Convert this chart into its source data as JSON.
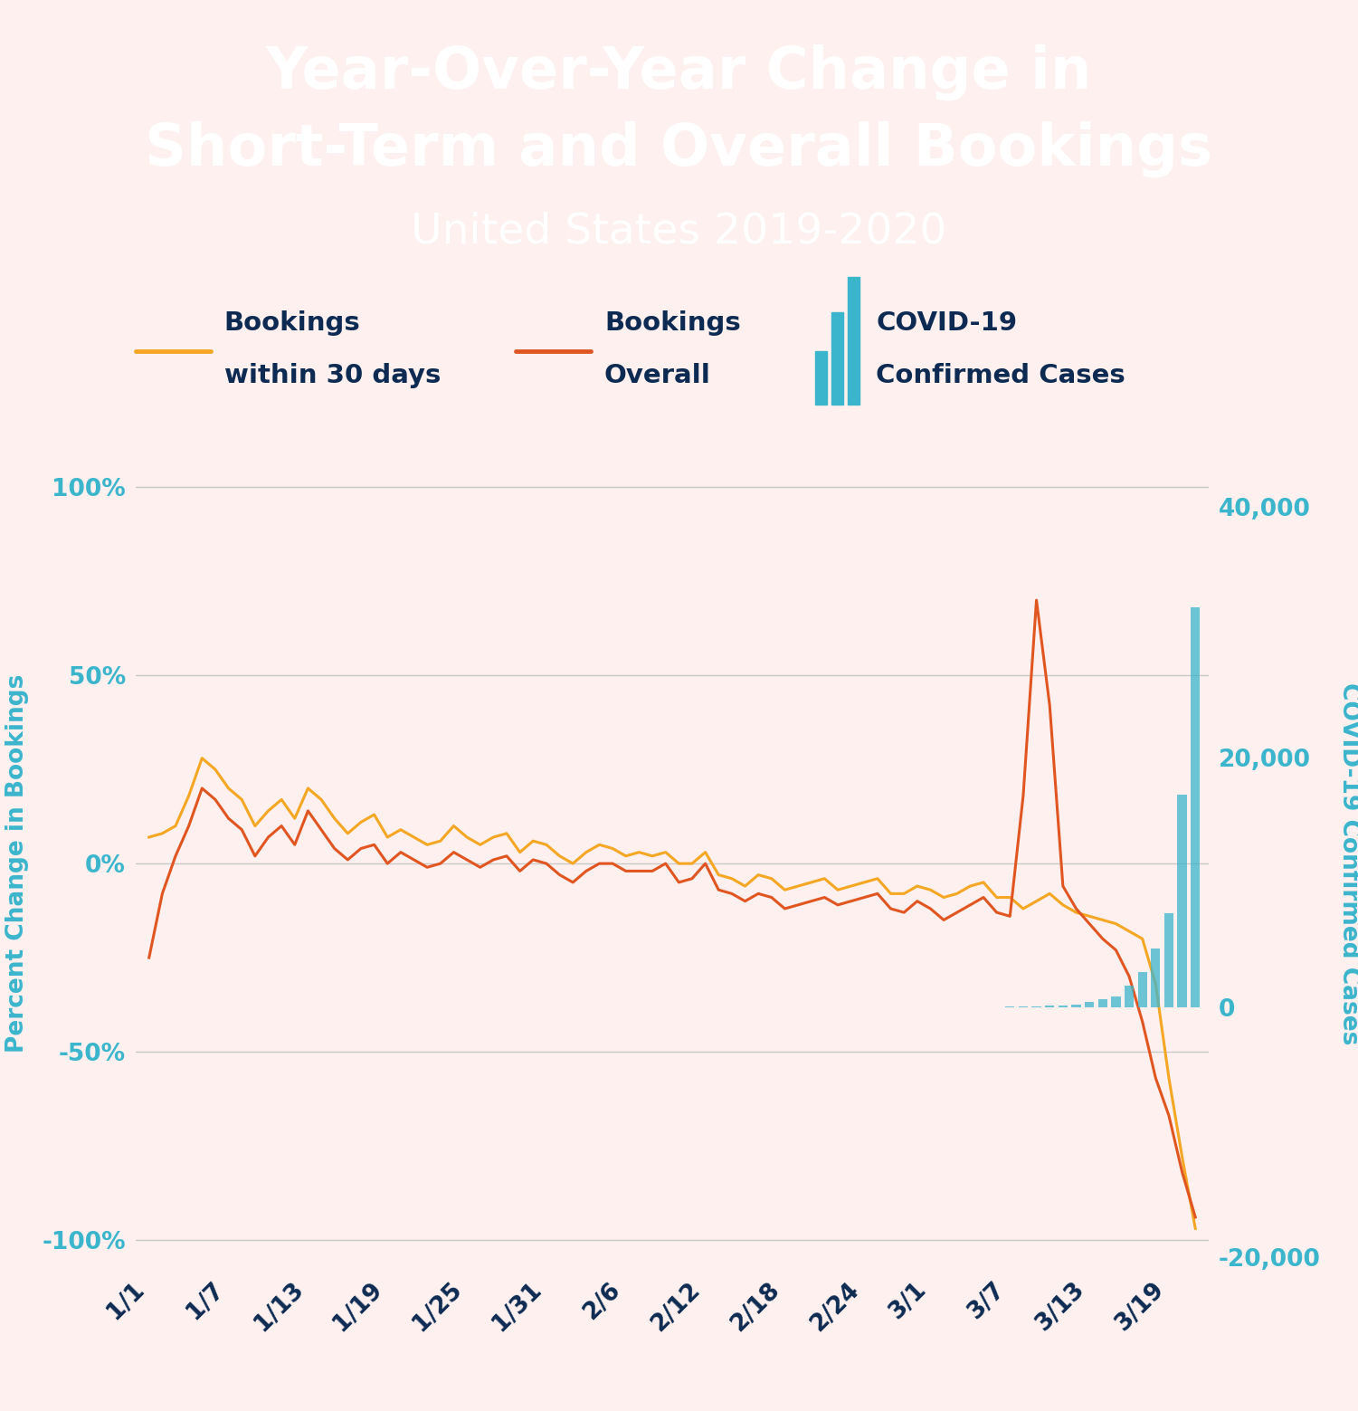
{
  "title_line1": "Year-Over-Year Change in",
  "title_line2": "Short-Term and Overall Bookings",
  "subtitle": "United States 2019-2020",
  "header_bg": "#3bb5cc",
  "chart_bg": "#fdf0ee",
  "title_color": "#ffffff",
  "left_ylabel": "Percent Change in Bookings",
  "right_ylabel": "COVID-19 Confirmed Cases",
  "left_axis_color": "#3bb5cc",
  "right_axis_color": "#3bb5cc",
  "tick_label_color": "#0d2b52",
  "x_tick_labels": [
    "1/1",
    "1/7",
    "1/13",
    "1/19",
    "1/25",
    "1/31",
    "2/6",
    "2/12",
    "2/18",
    "2/24",
    "3/1",
    "3/7",
    "3/13",
    "3/19"
  ],
  "ylim_left": [
    -1.08,
    1.08
  ],
  "ylim_right": [
    -21000,
    44000
  ],
  "yticks_left": [
    -1.0,
    -0.5,
    0.0,
    0.5,
    1.0
  ],
  "ytick_labels_left": [
    "-100%",
    "-50%",
    "0%",
    "50%",
    "100%"
  ],
  "yticks_right": [
    -20000,
    0,
    20000,
    40000
  ],
  "ytick_labels_right": [
    "-20,000",
    "0",
    "20,000",
    "40,000"
  ],
  "grid_color": "#c8c8c8",
  "line30_color": "#f5a623",
  "line_overall_color": "#e05520",
  "covid_bar_color": "#3bb5cc",
  "legend_text_color": "#0d2b52",
  "bookings_30d": [
    0.07,
    0.08,
    0.1,
    0.18,
    0.28,
    0.25,
    0.2,
    0.17,
    0.1,
    0.14,
    0.17,
    0.12,
    0.2,
    0.17,
    0.12,
    0.08,
    0.11,
    0.13,
    0.07,
    0.09,
    0.07,
    0.05,
    0.06,
    0.1,
    0.07,
    0.05,
    0.07,
    0.08,
    0.03,
    0.06,
    0.05,
    0.02,
    0.0,
    0.03,
    0.05,
    0.04,
    0.02,
    0.03,
    0.02,
    0.03,
    0.0,
    0.0,
    0.03,
    -0.03,
    -0.04,
    -0.06,
    -0.03,
    -0.04,
    -0.07,
    -0.06,
    -0.05,
    -0.04,
    -0.07,
    -0.06,
    -0.05,
    -0.04,
    -0.08,
    -0.08,
    -0.06,
    -0.07,
    -0.09,
    -0.08,
    -0.06,
    -0.05,
    -0.09,
    -0.09,
    -0.12,
    -0.1,
    -0.08,
    -0.11,
    -0.13,
    -0.14,
    -0.15,
    -0.16,
    -0.18,
    -0.2,
    -0.32,
    -0.57,
    -0.78,
    -0.97
  ],
  "bookings_overall": [
    -0.25,
    -0.08,
    0.02,
    0.1,
    0.2,
    0.17,
    0.12,
    0.09,
    0.02,
    0.07,
    0.1,
    0.05,
    0.14,
    0.09,
    0.04,
    0.01,
    0.04,
    0.05,
    0.0,
    0.03,
    0.01,
    -0.01,
    0.0,
    0.03,
    0.01,
    -0.01,
    0.01,
    0.02,
    -0.02,
    0.01,
    0.0,
    -0.03,
    -0.05,
    -0.02,
    0.0,
    0.0,
    -0.02,
    -0.02,
    -0.02,
    0.0,
    -0.05,
    -0.04,
    0.0,
    -0.07,
    -0.08,
    -0.1,
    -0.08,
    -0.09,
    -0.12,
    -0.11,
    -0.1,
    -0.09,
    -0.11,
    -0.1,
    -0.09,
    -0.08,
    -0.12,
    -0.13,
    -0.1,
    -0.12,
    -0.15,
    -0.13,
    -0.11,
    -0.09,
    -0.13,
    -0.14,
    0.18,
    0.7,
    0.42,
    -0.06,
    -0.12,
    -0.16,
    -0.2,
    -0.23,
    -0.3,
    -0.42,
    -0.57,
    -0.67,
    -0.82,
    -0.94
  ],
  "covid_cases": [
    0,
    0,
    0,
    0,
    0,
    0,
    0,
    0,
    0,
    0,
    0,
    0,
    0,
    0,
    0,
    0,
    0,
    0,
    0,
    0,
    0,
    0,
    0,
    0,
    0,
    0,
    0,
    0,
    0,
    0,
    0,
    0,
    0,
    0,
    0,
    0,
    0,
    0,
    0,
    0,
    0,
    0,
    0,
    0,
    0,
    0,
    0,
    0,
    0,
    0,
    0,
    0,
    0,
    0,
    0,
    0,
    0,
    0,
    0,
    0,
    0,
    0,
    0,
    0,
    20,
    40,
    60,
    90,
    130,
    175,
    250,
    430,
    650,
    900,
    1700,
    2800,
    4700,
    7500,
    17000,
    32000
  ],
  "x_positions": [
    0,
    6,
    12,
    18,
    24,
    30,
    36,
    42,
    48,
    54,
    59,
    65,
    71,
    77
  ]
}
